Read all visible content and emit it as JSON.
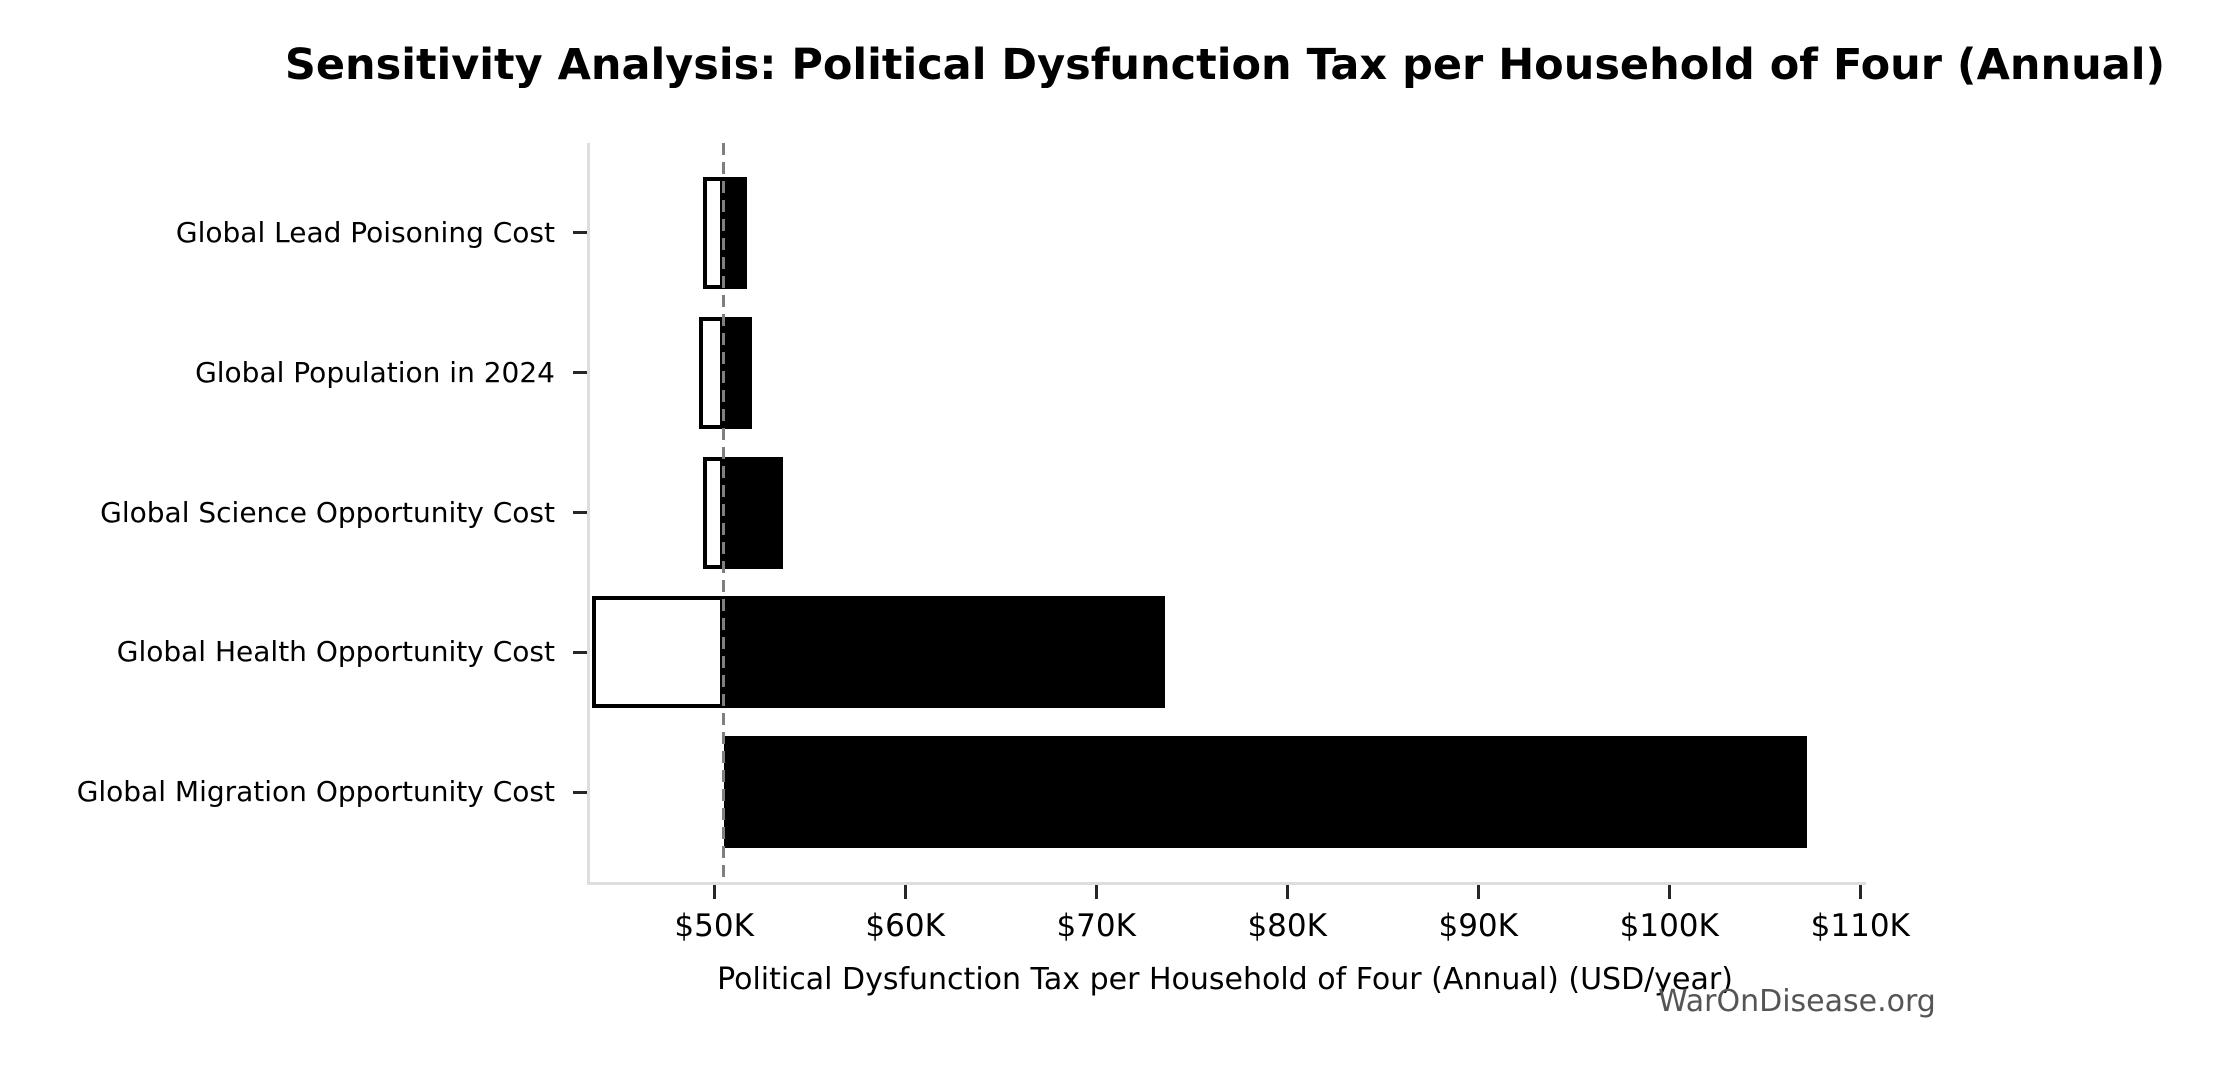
{
  "watermark": "WarOnDisease.org",
  "chart_data": {
    "type": "bar",
    "variant": "tornado-sensitivity",
    "orientation": "horizontal",
    "title": "Sensitivity Analysis: Political Dysfunction Tax per Household of Four (Annual)",
    "xlabel": "Political Dysfunction Tax per Household of Four (Annual) (USD/year)",
    "ylabel": "",
    "grid": false,
    "legend": null,
    "baseline_value": 50500,
    "xlim": [
      43500,
      110300
    ],
    "x_ticks": [
      {
        "value": 50000,
        "label": "$50K"
      },
      {
        "value": 60000,
        "label": "$60K"
      },
      {
        "value": 70000,
        "label": "$70K"
      },
      {
        "value": 80000,
        "label": "$80K"
      },
      {
        "value": 90000,
        "label": "$90K"
      },
      {
        "value": 100000,
        "label": "$100K"
      },
      {
        "value": 110000,
        "label": "$110K"
      }
    ],
    "categories": [
      "Global Lead Poisoning Cost",
      "Global Population in 2024",
      "Global Science Opportunity Cost",
      "Global Health Opportunity Cost",
      "Global Migration Opportunity Cost"
    ],
    "bars": [
      {
        "label": "Global Lead Poisoning Cost",
        "low": 49400,
        "high": 51700
      },
      {
        "label": "Global Population in 2024",
        "low": 49200,
        "high": 52000
      },
      {
        "label": "Global Science Opportunity Cost",
        "low": 49400,
        "high": 53600
      },
      {
        "label": "Global Health Opportunity Cost",
        "low": 43600,
        "high": 73600
      },
      {
        "label": "Global Migration Opportunity Cost",
        "low": 50500,
        "high": 107200
      }
    ],
    "series": [
      {
        "name": "low-side (white, outlined)",
        "values": [
          49400,
          49200,
          49400,
          43600,
          50500
        ]
      },
      {
        "name": "high-side (black fill)",
        "values": [
          51700,
          52000,
          53600,
          73600,
          107200
        ]
      }
    ],
    "colors": {
      "low_fill": "#ffffff",
      "high_fill": "#000000",
      "bar_edge": "#000000",
      "baseline_line": "#7f7f7f",
      "spine": "#dedede",
      "tick_mark": "#262626",
      "text": "#000000",
      "watermark": "#555555"
    }
  }
}
